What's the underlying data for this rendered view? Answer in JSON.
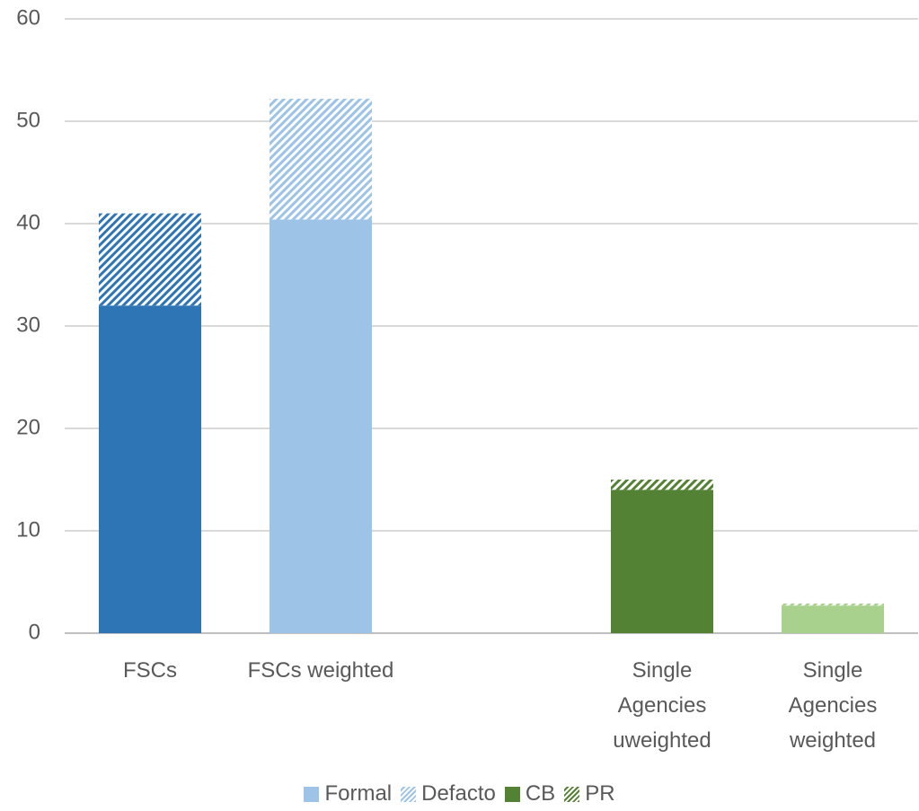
{
  "chart_data": {
    "type": "stacked_bar",
    "categories": [
      "FSCs",
      "FSCs weighted",
      null,
      "Single Agencies uweighted",
      "Single Agencies weighted"
    ],
    "series": [
      {
        "name": "Formal",
        "color": "#9dc3e6",
        "pattern": "solid",
        "colors": [
          "#2e75b6",
          "#9dc3e6",
          null,
          null,
          null
        ],
        "values": [
          32,
          40.4,
          null,
          null,
          null
        ]
      },
      {
        "name": "Defacto",
        "color": "#9dc3e6",
        "pattern": "hatch",
        "colors": [
          "#2e75b6",
          "#9dc3e6",
          null,
          null,
          null
        ],
        "values": [
          9,
          11.8,
          null,
          null,
          null
        ]
      },
      {
        "name": "CB",
        "color": "#548235",
        "pattern": "solid",
        "colors": [
          null,
          null,
          null,
          "#548235",
          "#a9d18e"
        ],
        "values": [
          null,
          null,
          null,
          14,
          2.7
        ]
      },
      {
        "name": "PR",
        "color": "#548235",
        "pattern": "hatch",
        "colors": [
          null,
          null,
          null,
          "#548235",
          "#a9d18e"
        ],
        "values": [
          null,
          null,
          null,
          1,
          0.2
        ]
      }
    ],
    "ylim": [
      0,
      60
    ],
    "yticks": [
      0,
      10,
      20,
      30,
      40,
      50,
      60
    ],
    "grid": true,
    "legend": "bottom"
  }
}
